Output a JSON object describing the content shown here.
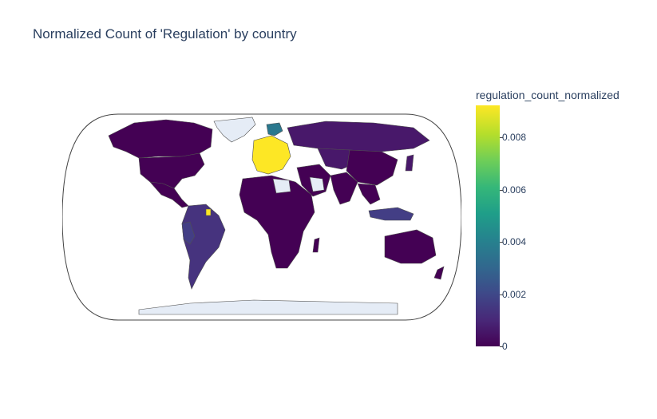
{
  "title": "Normalized Count of 'Regulation' by country",
  "colorbar": {
    "title": "regulation_count_normalized",
    "ticks": [
      "0",
      "0.002",
      "0.004",
      "0.006",
      "0.008"
    ],
    "range": [
      0,
      0.0092
    ]
  },
  "map": {
    "projection": "natural earth",
    "colorscale": "Viridis",
    "missing_color": "#e5ecf6"
  },
  "chart_data": {
    "type": "choropleth",
    "title": "Normalized Count of 'Regulation' by country",
    "colorbar_title": "regulation_count_normalized",
    "zrange": [
      0,
      0.0092
    ],
    "regions": [
      {
        "name": "Europe (EU states)",
        "value": 0.0092
      },
      {
        "name": "Norway",
        "value": 0.004
      },
      {
        "name": "Iceland",
        "value": 0.004
      },
      {
        "name": "Suriname",
        "value": 0.0085
      },
      {
        "name": "Peru",
        "value": 0.0018
      },
      {
        "name": "Brazil",
        "value": 0.0012
      },
      {
        "name": "Indonesia",
        "value": 0.0015
      },
      {
        "name": "Russia",
        "value": 0.0008
      },
      {
        "name": "Kazakhstan",
        "value": 0.0008
      },
      {
        "name": "Canada",
        "value": 0.0002
      },
      {
        "name": "United States",
        "value": 0.0002
      },
      {
        "name": "Australia",
        "value": 0.0001
      },
      {
        "name": "China",
        "value": 0.0003
      },
      {
        "name": "India",
        "value": 0.0003
      },
      {
        "name": "Africa",
        "value": 0.0001
      },
      {
        "name": "Greenland",
        "value": null
      },
      {
        "name": "Antarctica",
        "value": null
      },
      {
        "name": "Saudi Arabia",
        "value": null
      },
      {
        "name": "Libya",
        "value": null
      }
    ]
  }
}
